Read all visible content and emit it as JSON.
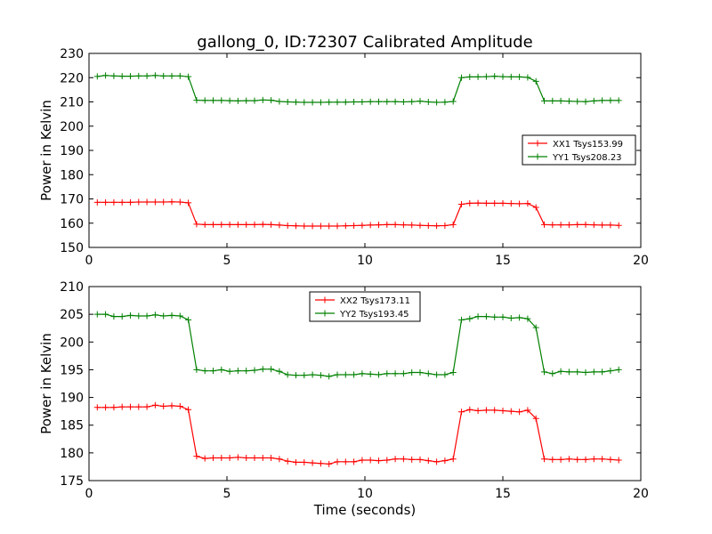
{
  "figure": {
    "title": "gallong_0, ID:72307 Calibrated Amplitude",
    "xlabel": "Time (seconds)"
  },
  "chart_data": [
    {
      "type": "line",
      "title": "gallong_0, ID:72307 Calibrated Amplitude",
      "xlabel": "",
      "ylabel": "Power in Kelvin",
      "xlim": [
        0,
        20
      ],
      "ylim": [
        150,
        230
      ],
      "xticks": [
        0,
        5,
        10,
        15,
        20
      ],
      "yticks": [
        150,
        160,
        170,
        180,
        190,
        200,
        210,
        220,
        230
      ],
      "grid": false,
      "legend_position": "center-right",
      "x": [
        0.3,
        0.6,
        0.9,
        1.2,
        1.5,
        1.8,
        2.1,
        2.4,
        2.7,
        3.0,
        3.3,
        3.6,
        3.9,
        4.2,
        4.5,
        4.8,
        5.1,
        5.4,
        5.7,
        6.0,
        6.3,
        6.6,
        6.9,
        7.2,
        7.5,
        7.8,
        8.1,
        8.4,
        8.7,
        9.0,
        9.3,
        9.6,
        9.9,
        10.2,
        10.5,
        10.8,
        11.1,
        11.4,
        11.7,
        12.0,
        12.3,
        12.6,
        12.9,
        13.2,
        13.5,
        13.8,
        14.1,
        14.4,
        14.7,
        15.0,
        15.3,
        15.6,
        15.9,
        16.2,
        16.5,
        16.8,
        17.1,
        17.4,
        17.7,
        18.0,
        18.3,
        18.6,
        18.9,
        19.2
      ],
      "series": [
        {
          "name": "XX1 Tsys153.99",
          "color": "#ff0000",
          "values": [
            168.6,
            168.6,
            168.6,
            168.6,
            168.6,
            168.7,
            168.7,
            168.7,
            168.7,
            168.8,
            168.7,
            168.4,
            159.6,
            159.4,
            159.4,
            159.4,
            159.4,
            159.4,
            159.4,
            159.4,
            159.5,
            159.4,
            159.2,
            159.0,
            158.9,
            158.8,
            158.8,
            158.8,
            158.8,
            158.8,
            158.9,
            159.0,
            159.1,
            159.2,
            159.3,
            159.4,
            159.4,
            159.3,
            159.2,
            159.1,
            159.0,
            158.9,
            159.0,
            159.4,
            167.8,
            168.2,
            168.3,
            168.2,
            168.2,
            168.2,
            168.1,
            168.0,
            168.1,
            166.5,
            159.4,
            159.3,
            159.3,
            159.3,
            159.4,
            159.4,
            159.3,
            159.2,
            159.2,
            159.1
          ]
        },
        {
          "name": "YY1 Tsys208.23",
          "color": "#008000",
          "values": [
            220.5,
            220.9,
            220.7,
            220.6,
            220.6,
            220.7,
            220.7,
            220.9,
            220.7,
            220.7,
            220.7,
            220.4,
            210.7,
            210.6,
            210.6,
            210.6,
            210.5,
            210.4,
            210.5,
            210.5,
            210.8,
            210.7,
            210.2,
            210.0,
            209.9,
            209.8,
            209.8,
            209.8,
            209.9,
            209.9,
            209.9,
            210.0,
            210.0,
            210.1,
            210.1,
            210.1,
            210.1,
            210.0,
            210.1,
            210.3,
            210.0,
            209.8,
            209.9,
            210.2,
            220.0,
            220.3,
            220.3,
            220.4,
            220.6,
            220.4,
            220.3,
            220.3,
            220.1,
            218.5,
            210.4,
            210.4,
            210.4,
            210.3,
            210.2,
            210.1,
            210.4,
            210.6,
            210.6,
            210.6
          ]
        }
      ]
    },
    {
      "type": "line",
      "title": "",
      "xlabel": "Time (seconds)",
      "ylabel": "Power in Kelvin",
      "xlim": [
        0,
        20
      ],
      "ylim": [
        175,
        210
      ],
      "xticks": [
        0,
        5,
        10,
        15,
        20
      ],
      "yticks": [
        175,
        180,
        185,
        190,
        195,
        200,
        205,
        210
      ],
      "grid": false,
      "legend_position": "top-center",
      "x": [
        0.3,
        0.6,
        0.9,
        1.2,
        1.5,
        1.8,
        2.1,
        2.4,
        2.7,
        3.0,
        3.3,
        3.6,
        3.9,
        4.2,
        4.5,
        4.8,
        5.1,
        5.4,
        5.7,
        6.0,
        6.3,
        6.6,
        6.9,
        7.2,
        7.5,
        7.8,
        8.1,
        8.4,
        8.7,
        9.0,
        9.3,
        9.6,
        9.9,
        10.2,
        10.5,
        10.8,
        11.1,
        11.4,
        11.7,
        12.0,
        12.3,
        12.6,
        12.9,
        13.2,
        13.5,
        13.8,
        14.1,
        14.4,
        14.7,
        15.0,
        15.3,
        15.6,
        15.9,
        16.2,
        16.5,
        16.8,
        17.1,
        17.4,
        17.7,
        18.0,
        18.3,
        18.6,
        18.9,
        19.2
      ],
      "series": [
        {
          "name": "XX2 Tsys173.11",
          "color": "#ff0000",
          "values": [
            188.2,
            188.2,
            188.2,
            188.3,
            188.3,
            188.3,
            188.3,
            188.6,
            188.4,
            188.5,
            188.4,
            187.8,
            179.4,
            179.0,
            179.1,
            179.1,
            179.1,
            179.2,
            179.1,
            179.1,
            179.1,
            179.1,
            178.9,
            178.5,
            178.3,
            178.3,
            178.2,
            178.1,
            178.0,
            178.4,
            178.4,
            178.4,
            178.7,
            178.7,
            178.6,
            178.7,
            178.9,
            178.9,
            178.8,
            178.8,
            178.6,
            178.4,
            178.6,
            178.9,
            187.4,
            187.8,
            187.6,
            187.7,
            187.7,
            187.6,
            187.5,
            187.4,
            187.7,
            186.2,
            178.9,
            178.8,
            178.8,
            178.9,
            178.8,
            178.8,
            178.9,
            178.9,
            178.8,
            178.7
          ]
        },
        {
          "name": "YY2 Tsys193.45",
          "color": "#008000",
          "values": [
            205.0,
            205.0,
            204.6,
            204.6,
            204.8,
            204.7,
            204.7,
            204.9,
            204.7,
            204.8,
            204.7,
            204.0,
            195.0,
            194.8,
            194.8,
            195.0,
            194.7,
            194.8,
            194.8,
            194.9,
            195.1,
            195.1,
            194.7,
            194.1,
            194.0,
            194.0,
            194.1,
            194.0,
            193.8,
            194.1,
            194.1,
            194.1,
            194.3,
            194.2,
            194.1,
            194.3,
            194.3,
            194.3,
            194.5,
            194.5,
            194.3,
            194.1,
            194.1,
            194.5,
            204.0,
            204.2,
            204.6,
            204.6,
            204.5,
            204.5,
            204.3,
            204.4,
            204.2,
            202.6,
            194.6,
            194.3,
            194.7,
            194.6,
            194.6,
            194.5,
            194.6,
            194.6,
            194.8,
            195.0
          ]
        }
      ]
    }
  ]
}
